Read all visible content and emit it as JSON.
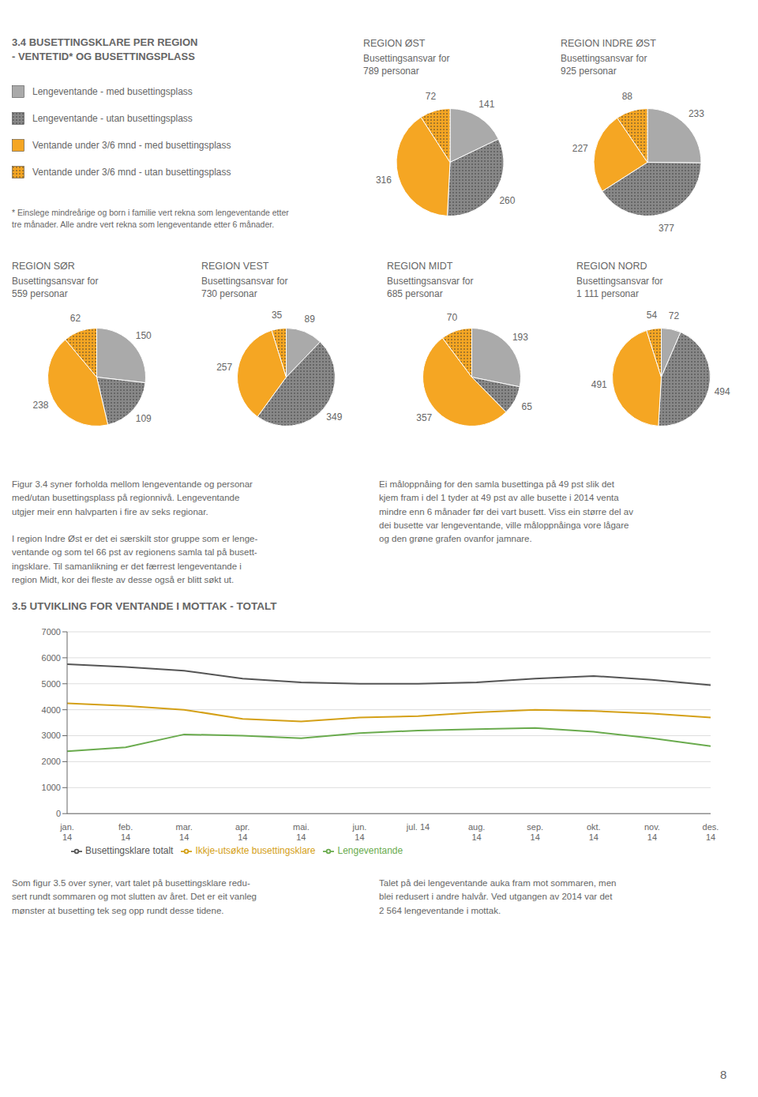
{
  "title": "3.4 BUSETTINGSKLARE PER REGION\n- VENTETID* OG BUSETTINGSPLASS",
  "annotations": [
    "* Einslege mindreårige og born i familie vert rekna som lengeventande etter\ntre månader. Alle andre vert rekna som lengeventande etter 6 månader.",
    "Figur 3.4 syner forholda mellom lengeventande og personar\nmed/utan busettingsplass på regionnivå. Lengeventande\nutgjer meir enn halvparten i fire av seks regionar.\n\nI region Indre Øst er det ei særskilt stor gruppe som er lenge-\nventande og som tel 66 pst av regionens samla tal på busett-\ningsklare. Til samanlikning er det færrest lengeventande i\nregion Midt, kor dei fleste av desse også er blitt søkt ut.",
    "Ei måloppnåing for den samla busettinga på 49 pst slik det\nkjem fram i del 1 tyder at 49 pst av alle busette i 2014 venta\nmindre enn 6 månader før dei vart busett. Viss ein større del av\ndei busette var lengeventande, ville måloppnåinga vore lågare\nog den grøne grafen ovanfor jamnare.",
    "Som figur 3.5 over syner, vart talet på busettingsklare redu-\nsert rundt sommaren og mot slutten av året. Det er eit vanleg\nmønster at busetting tek seg opp rundt desse tidene.",
    "Talet på dei lengeventande auka fram mot sommaren, men\nblei redusert i andre halvår. Ved utgangen av 2014 var det\n2 564 lengeventande i mottak.",
    "8"
  ],
  "chart_data": [
    {
      "type": "pie",
      "title": "REGION ØST",
      "subtitle": "Busettingsansvar for\n789 personar",
      "categories": [
        "Lengeventande - med busettingsplass",
        "Lengeventande - utan busettingsplass",
        "Ventande under 3/6 mnd - med busettingsplass",
        "Ventande under 3/6 mnd - utan busettingsplass"
      ],
      "values": [
        141,
        260,
        316,
        72
      ],
      "colors": [
        "#AAAAAA",
        "#888888",
        "#F5A623",
        "#F5A623"
      ],
      "data_labels": true
    },
    {
      "type": "pie",
      "title": "REGION INDRE ØST",
      "subtitle": "Busettingsansvar for\n925 personar",
      "categories": [
        "Lengeventande - med busettingsplass",
        "Lengeventande - utan busettingsplass",
        "Ventande under 3/6 mnd - med busettingsplass",
        "Ventande under 3/6 mnd - utan busettingsplass"
      ],
      "values": [
        233,
        377,
        227,
        88
      ],
      "colors": [
        "#AAAAAA",
        "#888888",
        "#F5A623",
        "#F5A623"
      ],
      "data_labels": true
    },
    {
      "type": "pie",
      "title": "REGION SØR",
      "subtitle": "Busettingsansvar for\n559 personar",
      "categories": [
        "Lengeventande - med busettingsplass",
        "Lengeventande - utan busettingsplass",
        "Ventande under 3/6 mnd - med busettingsplass",
        "Ventande under 3/6 mnd - utan busettingsplass"
      ],
      "values": [
        150,
        109,
        238,
        62
      ],
      "colors": [
        "#AAAAAA",
        "#888888",
        "#F5A623",
        "#F5A623"
      ],
      "data_labels": true
    },
    {
      "type": "pie",
      "title": "REGION VEST",
      "subtitle": "Busettingsansvar for\n730 personar",
      "categories": [
        "Lengeventande - med busettingsplass",
        "Lengeventande - utan busettingsplass",
        "Ventande under 3/6 mnd - med busettingsplass",
        "Ventande under 3/6 mnd - utan busettingsplass"
      ],
      "values": [
        89,
        349,
        257,
        35
      ],
      "colors": [
        "#AAAAAA",
        "#888888",
        "#F5A623",
        "#F5A623"
      ],
      "data_labels": true
    },
    {
      "type": "pie",
      "title": "REGION MIDT",
      "subtitle": "Busettingsansvar for\n685 personar",
      "categories": [
        "Lengeventande - med busettingsplass",
        "Lengeventande - utan busettingsplass",
        "Ventande under 3/6 mnd - med busettingsplass",
        "Ventande under 3/6 mnd - utan busettingsplass"
      ],
      "values": [
        193,
        65,
        357,
        70
      ],
      "colors": [
        "#AAAAAA",
        "#888888",
        "#F5A623",
        "#F5A623"
      ],
      "data_labels": true
    },
    {
      "type": "pie",
      "title": "REGION NORD",
      "subtitle": "Busettingsansvar for\n1 111 personar",
      "categories": [
        "Lengeventande - med busettingsplass",
        "Lengeventande - utan busettingsplass",
        "Ventande under 3/6 mnd - med busettingsplass",
        "Ventande under 3/6 mnd - utan busettingsplass"
      ],
      "values": [
        72,
        494,
        491,
        54
      ],
      "colors": [
        "#AAAAAA",
        "#888888",
        "#F5A623",
        "#F5A623"
      ],
      "data_labels": true
    },
    {
      "type": "line",
      "title": "3.5 UTVIKLING FOR VENTANDE I MOTTAK - TOTALT",
      "categories": [
        "jan.\n14",
        "feb.\n14",
        "mar.\n14",
        "apr.\n14",
        "mai.\n14",
        "jun.\n14",
        "jul. 14",
        "aug.\n14",
        "sep.\n14",
        "okt.\n14",
        "nov.\n14",
        "des.\n14"
      ],
      "series": [
        {
          "name": "Busettingsklare totalt",
          "color": "#555555",
          "values": [
            5750,
            5650,
            5500,
            5200,
            5050,
            5000,
            5000,
            5050,
            5200,
            5300,
            5150,
            4950
          ]
        },
        {
          "name": "Ikkje-utsøkte busettingsklare",
          "color": "#D4A017",
          "values": [
            4250,
            4150,
            4000,
            3650,
            3550,
            3700,
            3750,
            3900,
            4000,
            3950,
            3850,
            3700
          ]
        },
        {
          "name": "Lengeventande",
          "color": "#6AAB4E",
          "values": [
            2400,
            2550,
            3050,
            3000,
            2900,
            3100,
            3200,
            3250,
            3300,
            3150,
            2900,
            2600
          ]
        }
      ],
      "ylim": [
        0,
        7000
      ],
      "yticks": [
        0,
        1000,
        2000,
        3000,
        4000,
        5000,
        6000,
        7000
      ],
      "grid": true,
      "legend": "bottom"
    }
  ]
}
